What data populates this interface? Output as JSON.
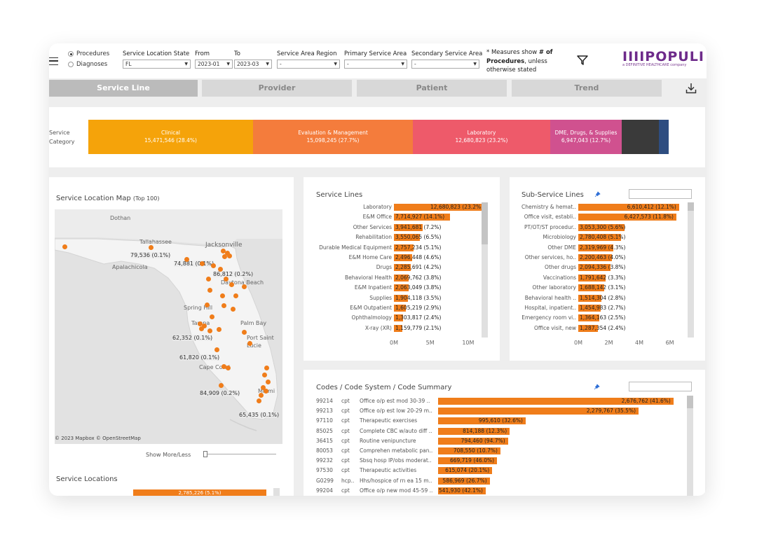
{
  "filters": {
    "radio_options": [
      "Procedures",
      "Diagnoses"
    ],
    "selected_radio": "Procedures",
    "service_location_state": {
      "label": "Service Location State",
      "value": "FL"
    },
    "from": {
      "label": "From",
      "value": "2023-01"
    },
    "to": {
      "label": "To",
      "value": "2023-03"
    },
    "service_area_region": {
      "label": "Service Area Region",
      "value": "-"
    },
    "primary_service_area": {
      "label": "Primary Service Area",
      "value": "-"
    },
    "secondary_service_area": {
      "label": "Secondary Service Area",
      "value": "-"
    }
  },
  "note": {
    "prefix": "* Measures show ",
    "bold1": "# of Procedures",
    "suffix": ", unless otherwise stated"
  },
  "logo": {
    "text": "IIIIPOPULI",
    "sub": "a DEFINITIVE HEALTHCARE company"
  },
  "tabs": [
    "Service Line",
    "Provider",
    "Patient",
    "Trend"
  ],
  "active_tab": "Service Line",
  "service_category": {
    "label": "Service Category",
    "segments": [
      {
        "name": "Clinical",
        "value": "15,471,546 (28.4%)",
        "color": "#f5a30a"
      },
      {
        "name": "Evaluation & Management",
        "value": "15,098,245 (27.7%)",
        "color": "#f47c3c"
      },
      {
        "name": "Laboratory",
        "value": "12,680,823 (23.2%)",
        "color": "#ee5a6a"
      },
      {
        "name": "DME, Drugs, & Supplies",
        "value": "6,947,043 (12.7%)",
        "color": "#d0518f"
      },
      {
        "name": "",
        "value": "",
        "color": "#3a3a3a"
      },
      {
        "name": "",
        "value": "",
        "color": "#2e4d80"
      }
    ]
  },
  "map": {
    "title": "Service Location Map",
    "title_suffix": "(Top 100)",
    "cities": [
      "Dothan",
      "Tallahassee",
      "Jacksonville",
      "Apalachicola",
      "Daytona Beach",
      "Spring Hill",
      "Tampa",
      "Palm Bay",
      "Port Saint Lucie",
      "Cape Coral",
      "Miami"
    ],
    "labels": [
      "79,536 (0.1%)",
      "74,881 (0.1%)",
      "86,812 (0.2%)",
      "62,352 (0.1%)",
      "61,820 (0.1%)",
      "84,909 (0.2%)",
      "65,435 (0.1%)"
    ],
    "attribution": "© 2023 Mapbox © OpenStreetMap",
    "show_more": "Show More/Less"
  },
  "service_locations": {
    "title": "Service Locations",
    "partial_value": "2,785,226 (5.1%)"
  },
  "service_lines": {
    "title": "Service Lines",
    "axis": [
      "0M",
      "5M",
      "10M"
    ],
    "axis_max": 12000000,
    "rows": [
      {
        "label": "Laboratory",
        "value": 12680823,
        "text": "12,680,823 (23.2%)"
      },
      {
        "label": "E&M Office",
        "value": 7714927,
        "text": "7,714,927 (14.1%)"
      },
      {
        "label": "Other Services",
        "value": 3941681,
        "text": "3,941,681 (7.2%)"
      },
      {
        "label": "Rehabilitation",
        "value": 3550065,
        "text": "3,550,065 (6.5%)"
      },
      {
        "label": "Durable Medical Equipment",
        "value": 2757234,
        "text": "2,757,234 (5.1%)"
      },
      {
        "label": "E&M Home Care",
        "value": 2496448,
        "text": "2,496,448 (4.6%)"
      },
      {
        "label": "Drugs",
        "value": 2285691,
        "text": "2,285,691 (4.2%)"
      },
      {
        "label": "Behavioral Health",
        "value": 2069762,
        "text": "2,069,762 (3.8%)"
      },
      {
        "label": "E&M Inpatient",
        "value": 2063049,
        "text": "2,063,049 (3.8%)"
      },
      {
        "label": "Supplies",
        "value": 1904118,
        "text": "1,904,118 (3.5%)"
      },
      {
        "label": "E&M Outpatient",
        "value": 1605219,
        "text": "1,605,219 (2.9%)"
      },
      {
        "label": "Ophthalmology",
        "value": 1303817,
        "text": "1,303,817 (2.4%)"
      },
      {
        "label": "X-ray (XR)",
        "value": 1159779,
        "text": "1,159,779 (2.1%)"
      }
    ]
  },
  "sub_service_lines": {
    "title": "Sub-Service Lines",
    "axis": [
      "0M",
      "2M",
      "4M",
      "6M"
    ],
    "axis_max": 6800000,
    "rows": [
      {
        "label": "Chemistry & hemat..",
        "value": 6610412,
        "text": "6,610,412 (12.1%)"
      },
      {
        "label": "Office visit, establi..",
        "value": 6427573,
        "text": "6,427,573 (11.8%)"
      },
      {
        "label": "PT/OT/ST procedur..",
        "value": 3053300,
        "text": "3,053,300 (5.6%)"
      },
      {
        "label": "Microbiology",
        "value": 2780408,
        "text": "2,780,408 (5.1%)"
      },
      {
        "label": "Other DME",
        "value": 2319969,
        "text": "2,319,969 (4.3%)"
      },
      {
        "label": "Other services, ho..",
        "value": 2200463,
        "text": "2,200,463 (4.0%)"
      },
      {
        "label": "Other drugs",
        "value": 2094336,
        "text": "2,094,336 (3.8%)"
      },
      {
        "label": "Vaccinations",
        "value": 1791642,
        "text": "1,791,642 (3.3%)"
      },
      {
        "label": "Other laboratory",
        "value": 1688142,
        "text": "1,688,142 (3.1%)"
      },
      {
        "label": "Behavioral health ..",
        "value": 1514304,
        "text": "1,514,304 (2.8%)"
      },
      {
        "label": "Hospital, inpatient..",
        "value": 1454983,
        "text": "1,454,983 (2.7%)"
      },
      {
        "label": "Emergency room vi..",
        "value": 1364163,
        "text": "1,364,163 (2.5%)"
      },
      {
        "label": "Office visit, new",
        "value": 1287354,
        "text": "1,287,354 (2.4%)"
      }
    ]
  },
  "codes": {
    "title": "Codes / Code System / Code Summary",
    "axis_max": 2750000,
    "rows": [
      {
        "code": "99214",
        "system": "cpt",
        "summary": "Office o/p est mod 30-39 ..",
        "value": 2676762,
        "text": "2,676,762 (41.6%)"
      },
      {
        "code": "99213",
        "system": "cpt",
        "summary": "Office o/p est low 20-29 m..",
        "value": 2279767,
        "text": "2,279,767 (35.5%)"
      },
      {
        "code": "97110",
        "system": "cpt",
        "summary": "Therapeutic exercises",
        "value": 995610,
        "text": "995,610 (32.6%)"
      },
      {
        "code": "85025",
        "system": "cpt",
        "summary": "Complete CBC w/auto diff ..",
        "value": 814188,
        "text": "814,188 (12.3%)"
      },
      {
        "code": "36415",
        "system": "cpt",
        "summary": "Routine venipuncture",
        "value": 794460,
        "text": "794,460 (94.7%)"
      },
      {
        "code": "80053",
        "system": "cpt",
        "summary": "Comprehen metabolic pan..",
        "value": 708550,
        "text": "708,550 (10.7%)"
      },
      {
        "code": "99232",
        "system": "cpt",
        "summary": "Sbsq hosp IP/obs moderat..",
        "value": 669719,
        "text": "669,719 (46.0%)"
      },
      {
        "code": "97530",
        "system": "cpt",
        "summary": "Therapeutic activities",
        "value": 615074,
        "text": "615,074 (20.1%)"
      },
      {
        "code": "G0299",
        "system": "hcp..",
        "summary": "Hhs/hospice of rn ea 15 m..",
        "value": 586969,
        "text": "586,969 (26.7%)"
      },
      {
        "code": "99204",
        "system": "cpt",
        "summary": "Office o/p new mod 45-59 ..",
        "value": 541930,
        "text": "541,930 (42.1%)"
      }
    ]
  }
}
